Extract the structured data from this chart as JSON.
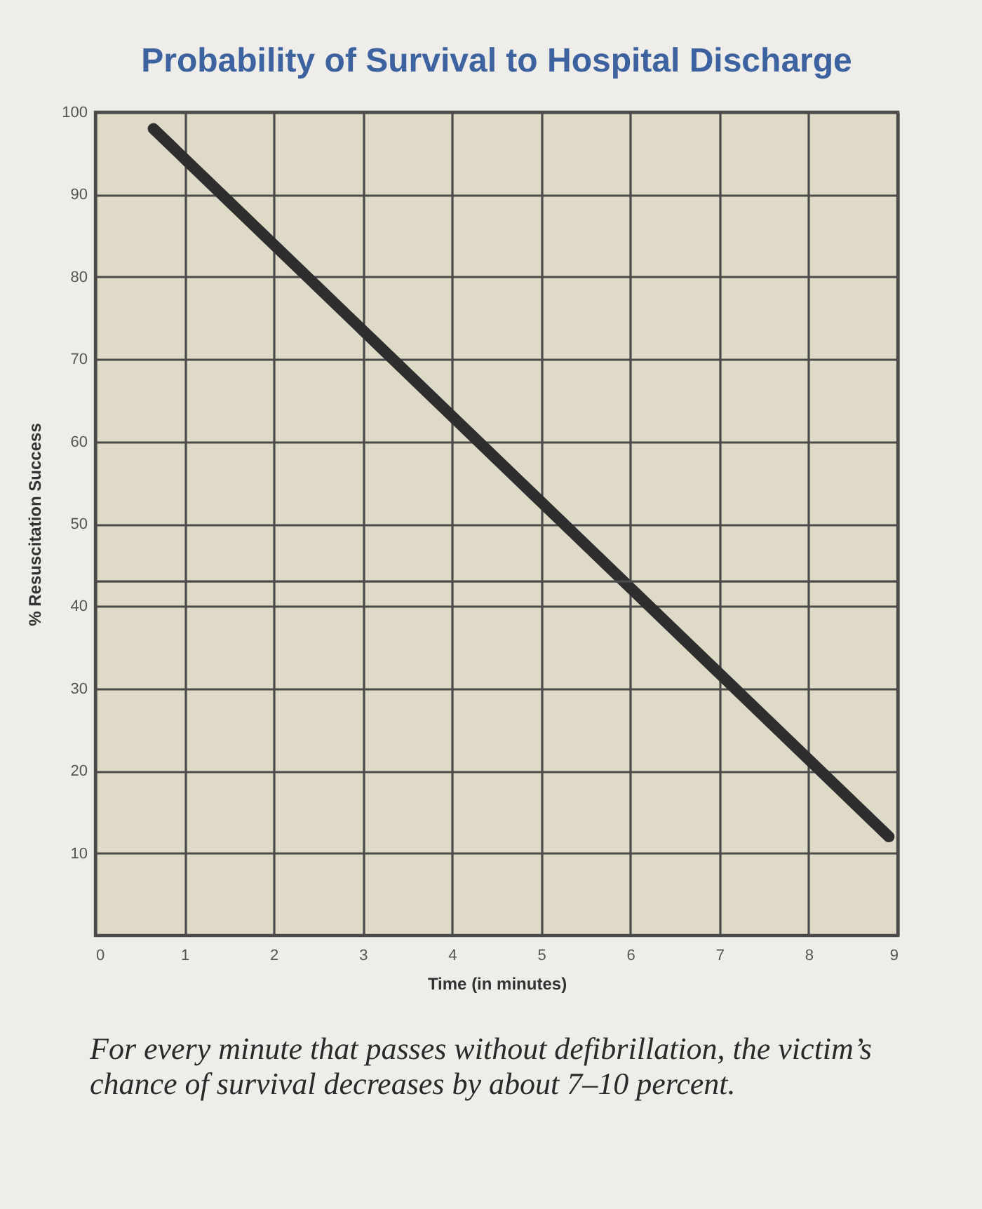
{
  "chart_data": {
    "type": "line",
    "title": "Probability of Survival to Hospital Discharge",
    "xlabel": "Time (in minutes)",
    "ylabel": "% Resuscitation Success",
    "annotations": [
      "For every minute that passes without defibrillation, the victim’s chance of survival decreases by about 7–10 percent."
    ],
    "x": [
      0.65,
      8.9
    ],
    "series": [
      {
        "color": "#2e2e2e",
        "values": [
          98,
          12
        ]
      }
    ],
    "xlim": [
      0,
      9
    ],
    "ylim": [
      0,
      100
    ],
    "xticks": [
      0,
      1,
      2,
      3,
      4,
      5,
      6,
      7,
      8,
      9
    ],
    "yticks": [
      10,
      20,
      30,
      40,
      50,
      60,
      70,
      80,
      90,
      100
    ],
    "grid": true,
    "marker": "none",
    "line_style": "solid",
    "ref_lines": [
      {
        "axis": "y",
        "value": 43,
        "color": "#4a4a4a"
      }
    ]
  }
}
